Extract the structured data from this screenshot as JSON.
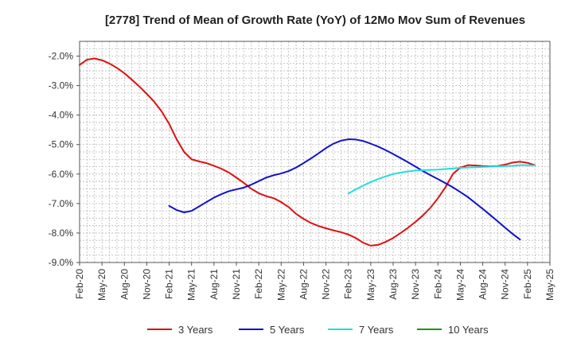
{
  "chart_data": {
    "type": "line",
    "title": "[2778]  Trend of Mean of Growth Rate (YoY) of 12Mo Mov Sum of Revenues",
    "xlabel": "",
    "ylabel": "",
    "ylim": [
      -9.0,
      -1.5
    ],
    "xlim": [
      "Feb-20",
      "May-25"
    ],
    "y_ticks": [
      -2.0,
      -3.0,
      -4.0,
      -5.0,
      -6.0,
      -7.0,
      -8.0,
      -9.0
    ],
    "y_tick_labels": [
      "-2.0%",
      "-3.0%",
      "-4.0%",
      "-5.0%",
      "-6.0%",
      "-7.0%",
      "-8.0%",
      "-9.0%"
    ],
    "x_tick_labels": [
      "Feb-20",
      "May-20",
      "Aug-20",
      "Nov-20",
      "Feb-21",
      "May-21",
      "Aug-21",
      "Nov-21",
      "Feb-22",
      "May-22",
      "Aug-22",
      "Nov-22",
      "Feb-23",
      "May-23",
      "Aug-23",
      "Nov-23",
      "Feb-24",
      "May-24",
      "Aug-24",
      "Nov-24",
      "Feb-25",
      "May-25"
    ],
    "grid": true,
    "legend_position": "bottom",
    "series": [
      {
        "name": "3 Years",
        "color": "#dd1111",
        "start_month_index": 0,
        "values": [
          -2.3,
          -2.12,
          -2.08,
          -2.14,
          -2.25,
          -2.4,
          -2.58,
          -2.8,
          -3.03,
          -3.28,
          -3.55,
          -3.88,
          -4.3,
          -4.82,
          -5.25,
          -5.5,
          -5.57,
          -5.63,
          -5.72,
          -5.82,
          -5.95,
          -6.12,
          -6.3,
          -6.5,
          -6.65,
          -6.75,
          -6.82,
          -6.95,
          -7.12,
          -7.35,
          -7.52,
          -7.66,
          -7.76,
          -7.84,
          -7.91,
          -7.97,
          -8.05,
          -8.17,
          -8.33,
          -8.43,
          -8.4,
          -8.3,
          -8.17,
          -8.0,
          -7.82,
          -7.62,
          -7.4,
          -7.14,
          -6.82,
          -6.45,
          -6.0,
          -5.78,
          -5.7,
          -5.71,
          -5.73,
          -5.74,
          -5.73,
          -5.68,
          -5.61,
          -5.58,
          -5.62,
          -5.7
        ]
      },
      {
        "name": "5 Years",
        "color": "#1111cc",
        "start_month_index": 12,
        "values": [
          -7.08,
          -7.22,
          -7.3,
          -7.25,
          -7.1,
          -6.95,
          -6.8,
          -6.68,
          -6.58,
          -6.52,
          -6.46,
          -6.36,
          -6.24,
          -6.12,
          -6.04,
          -5.98,
          -5.9,
          -5.78,
          -5.63,
          -5.47,
          -5.3,
          -5.12,
          -4.97,
          -4.87,
          -4.82,
          -4.83,
          -4.88,
          -4.97,
          -5.07,
          -5.19,
          -5.32,
          -5.46,
          -5.6,
          -5.75,
          -5.9,
          -6.04,
          -6.17,
          -6.31,
          -6.45,
          -6.61,
          -6.78,
          -6.98,
          -7.18,
          -7.39,
          -7.6,
          -7.82,
          -8.03,
          -8.22
        ]
      },
      {
        "name": "7 Years",
        "color": "#22dddd",
        "start_month_index": 36,
        "values": [
          -6.66,
          -6.52,
          -6.39,
          -6.27,
          -6.17,
          -6.08,
          -6.0,
          -5.95,
          -5.91,
          -5.88,
          -5.87,
          -5.86,
          -5.85,
          -5.83,
          -5.81,
          -5.79,
          -5.78,
          -5.77,
          -5.76,
          -5.75,
          -5.74,
          -5.73,
          -5.72,
          -5.7,
          -5.7,
          -5.71
        ]
      },
      {
        "name": "10 Years",
        "color": "#119911",
        "start_month_index": 0,
        "values": []
      }
    ]
  }
}
